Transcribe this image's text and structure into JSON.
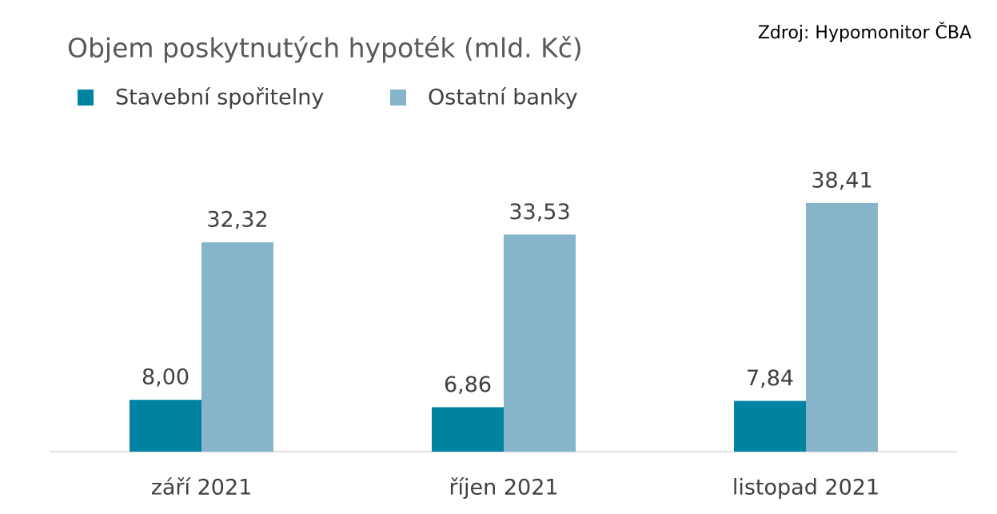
{
  "chart_data": {
    "type": "bar",
    "title": "Objem poskytnutých hypoték (mld. Kč)",
    "source": "Zdroj: Hypomonitor ČBA",
    "categories": [
      "září 2021",
      "říjen 2021",
      "listopad 2021"
    ],
    "series": [
      {
        "name": "Stavební spořitelny",
        "color": "#0083a0",
        "values": [
          8.0,
          6.86,
          7.84
        ],
        "value_labels": [
          "8,00",
          "6,86",
          "7,84"
        ]
      },
      {
        "name": "Ostatní banky",
        "color": "#86b4ca",
        "values": [
          32.32,
          33.53,
          38.41
        ],
        "value_labels": [
          "32,32",
          "33,53",
          "38,41"
        ]
      }
    ]
  }
}
